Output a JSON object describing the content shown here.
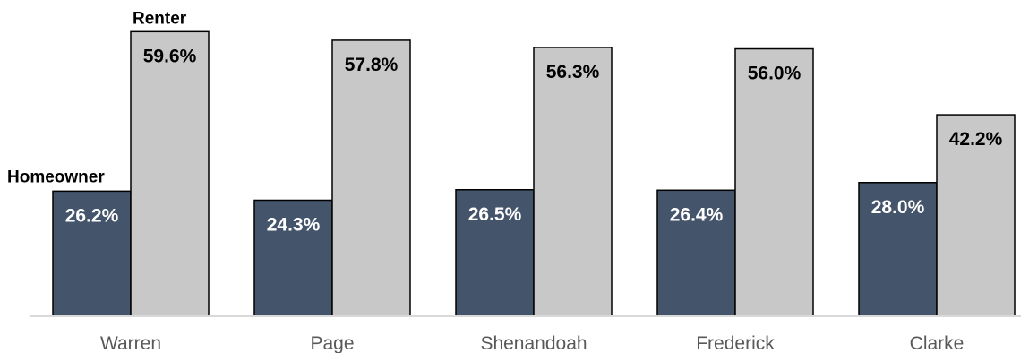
{
  "chart_data": {
    "type": "bar",
    "categories": [
      "Warren",
      "Page",
      "Shenandoah",
      "Frederick",
      "Clarke"
    ],
    "series": [
      {
        "name": "Homeowner",
        "values": [
          26.2,
          24.3,
          26.5,
          26.4,
          28.0
        ],
        "color": "#44546A",
        "label_color": "#FFFFFF"
      },
      {
        "name": "Renter",
        "values": [
          59.6,
          57.8,
          56.3,
          56.0,
          42.2
        ],
        "color": "#C8C8C8",
        "label_color": "#000000"
      }
    ],
    "data_labels": [
      [
        "26.2%",
        "24.3%",
        "26.5%",
        "26.4%",
        "28.0%"
      ],
      [
        "59.6%",
        "57.8%",
        "56.3%",
        "56.0%",
        "42.2%"
      ]
    ],
    "title": "",
    "xlabel": "",
    "ylabel": "",
    "ylim": [
      0,
      60
    ],
    "grid": false,
    "legend": "direct labels above first category"
  }
}
